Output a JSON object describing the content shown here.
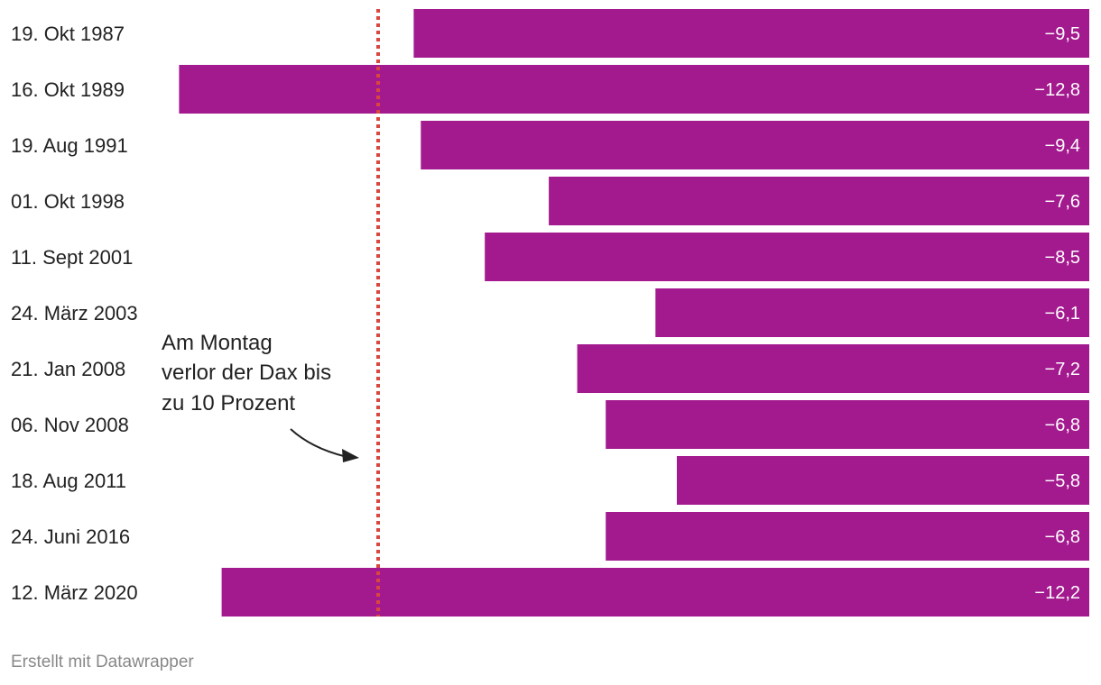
{
  "chart_data": {
    "type": "bar",
    "orientation": "horizontal",
    "categories": [
      "19. Okt 1987",
      "16. Okt 1989",
      "19. Aug 1991",
      "01. Okt 1998",
      "11. Sept 2001",
      "24. März 2003",
      "21. Jan 2008",
      "06. Nov 2008",
      "18. Aug 2011",
      "24. Juni 2016",
      "12. März 2020"
    ],
    "values": [
      -9.5,
      -12.8,
      -9.4,
      -7.6,
      -8.5,
      -6.1,
      -7.2,
      -6.8,
      -5.8,
      -6.8,
      -12.2
    ],
    "value_labels": [
      "−9,5",
      "−12,8",
      "−9,4",
      "−7,6",
      "−8,5",
      "−6,1",
      "−7,2",
      "−6,8",
      "−5,8",
      "−6,8",
      "−12,2"
    ],
    "xlim": [
      -13.1,
      0
    ],
    "reference_line": {
      "value": -10,
      "style": "dotted"
    },
    "annotation": {
      "lines": [
        "Am Montag",
        "verlor der Dax bis",
        "zu 10 Prozent"
      ]
    },
    "bar_color": "#a3198e",
    "reference_line_color": "#d9473f"
  },
  "footer": {
    "credit": "Erstellt mit Datawrapper"
  }
}
